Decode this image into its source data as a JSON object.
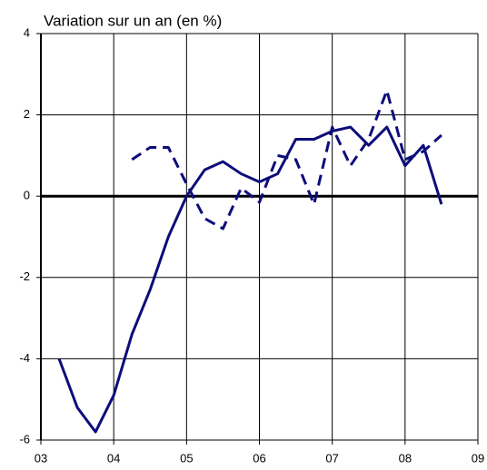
{
  "chart_data": {
    "type": "line",
    "title": "Variation sur un an (en %)",
    "x": [
      3.25,
      3.5,
      3.75,
      4,
      4.25,
      4.5,
      4.75,
      5,
      5.25,
      5.5,
      5.75,
      6,
      6.25,
      6.5,
      6.75,
      7,
      7.25,
      7.5,
      7.75,
      8,
      8.25,
      8.5
    ],
    "series": [
      {
        "color": "#0c0c7a",
        "dash": false,
        "values": [
          -4.0,
          -5.2,
          -5.8,
          -4.9,
          -3.4,
          -2.3,
          -1.0,
          0.0,
          0.65,
          0.85,
          0.55,
          0.35,
          0.55,
          1.4,
          1.4,
          1.6,
          1.7,
          1.25,
          1.7,
          0.75,
          1.25,
          -0.2
        ]
      },
      {
        "color": "#0c0c7a",
        "dash": true,
        "values": [
          null,
          null,
          null,
          null,
          0.9,
          1.2,
          1.2,
          0.3,
          -0.55,
          -0.8,
          0.2,
          -0.15,
          1.0,
          0.9,
          -0.2,
          1.7,
          0.75,
          1.4,
          2.6,
          0.9,
          1.1,
          1.5
        ]
      }
    ],
    "xlim": [
      3,
      9
    ],
    "xticks": [
      {
        "value": 3,
        "label": "03"
      },
      {
        "value": 4,
        "label": "04"
      },
      {
        "value": 5,
        "label": "05"
      },
      {
        "value": 6,
        "label": "06"
      },
      {
        "value": 7,
        "label": "07"
      },
      {
        "value": 8,
        "label": "08"
      },
      {
        "value": 9,
        "label": "09"
      }
    ],
    "ylim": [
      -6,
      4
    ],
    "yticks": [
      -6,
      -4,
      -2,
      0,
      2,
      4
    ],
    "grid": true
  }
}
